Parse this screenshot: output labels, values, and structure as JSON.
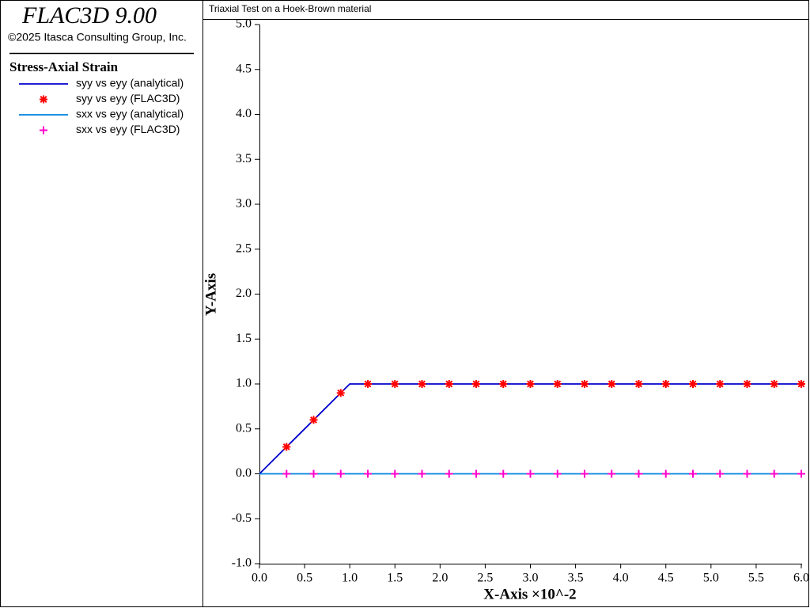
{
  "header": {
    "title": "FLAC3D 9.00",
    "copyright": "©2025 Itasca Consulting Group, Inc."
  },
  "chart_data": {
    "type": "line",
    "title": "Triaxial Test on a Hoek-Brown material",
    "legend_title": "Stress-Axial Strain",
    "x_label": "X-Axis ×10^-2",
    "y_label": "Y-Axis",
    "xlim": [
      0,
      6
    ],
    "ylim": [
      -1,
      5
    ],
    "xticks": [
      {
        "value": 0,
        "label": "0.0"
      },
      0.5,
      {
        "value": 1,
        "label": "1.0"
      },
      1.5,
      {
        "value": 2,
        "label": "2.0"
      },
      2.5,
      {
        "value": 3,
        "label": "3.0"
      },
      3.5,
      {
        "value": 4,
        "label": "4.0"
      },
      4.5,
      {
        "value": 5,
        "label": "5.0"
      },
      5.5,
      {
        "value": 6,
        "label": "6.0"
      }
    ],
    "yticks": [
      {
        "value": -1,
        "label": "-1.0"
      },
      -0.5,
      {
        "value": 0,
        "label": "0.0"
      },
      0.5,
      {
        "value": 1,
        "label": "1.0"
      },
      1.5,
      {
        "value": 2,
        "label": "2.0"
      },
      2.5,
      {
        "value": 3,
        "label": "3.0"
      },
      3.5,
      {
        "value": 4,
        "label": "4.0"
      },
      4.5,
      {
        "value": 5,
        "label": "5.0"
      }
    ],
    "grid": false,
    "series": [
      {
        "name": "syy vs eyy (analytical)",
        "color": "#0000cc",
        "marker": "none",
        "x": [
          0,
          1,
          6
        ],
        "values": [
          0,
          1,
          1
        ]
      },
      {
        "name": "syy vs eyy (FLAC3D)",
        "color": "#ff0000",
        "marker": "star",
        "x": [
          0.3,
          0.6,
          0.9,
          1.2,
          1.5,
          1.8,
          2.1,
          2.4,
          2.7,
          3,
          3.3,
          3.6,
          3.9,
          4.2,
          4.5,
          4.8,
          5.1,
          5.4,
          5.7,
          6
        ],
        "values": [
          0.3,
          0.6,
          0.9,
          1,
          1,
          1,
          1,
          1,
          1,
          1,
          1,
          1,
          1,
          1,
          1,
          1,
          1,
          1,
          1,
          1
        ]
      },
      {
        "name": "sxx vs eyy (analytical)",
        "color": "#0080e0",
        "marker": "none",
        "x": [
          0,
          6
        ],
        "values": [
          0,
          0
        ]
      },
      {
        "name": "sxx vs eyy (FLAC3D)",
        "color": "#ff00cc",
        "marker": "plus",
        "x": [
          0.3,
          0.6,
          0.9,
          1.2,
          1.5,
          1.8,
          2.1,
          2.4,
          2.7,
          3,
          3.3,
          3.6,
          3.9,
          4.2,
          4.5,
          4.8,
          5.1,
          5.4,
          5.7,
          6
        ],
        "values": [
          0,
          0,
          0,
          0,
          0,
          0,
          0,
          0,
          0,
          0,
          0,
          0,
          0,
          0,
          0,
          0,
          0,
          0,
          0,
          0
        ]
      }
    ]
  }
}
